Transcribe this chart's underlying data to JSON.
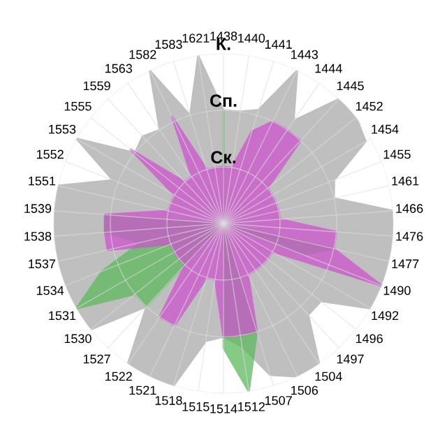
{
  "chart_data": {
    "type": "radar",
    "categories": [
      "1438",
      "1440",
      "1441",
      "1443",
      "1444",
      "1445",
      "1452",
      "1454",
      "1455",
      "1461",
      "1466",
      "1476",
      "1477",
      "1490",
      "1492",
      "1496",
      "1497",
      "1504",
      "1506",
      "1507",
      "1512",
      "1514",
      "1515",
      "1518",
      "1521",
      "1522",
      "1527",
      "1530",
      "1531",
      "1534",
      "1537",
      "1538",
      "1539",
      "1551",
      "1552",
      "1553",
      "1555",
      "1559",
      "1563",
      "1582",
      "1583",
      "1621"
    ],
    "series": [
      {
        "color": "#b4b4b4",
        "values": [
          2.0,
          2.0,
          2.1,
          3.0,
          2.2,
          3.0,
          3.0,
          2.9,
          2.1,
          2.0,
          3.0,
          3.0,
          3.0,
          3.0,
          3.0,
          2.2,
          2.2,
          3.0,
          3.0,
          2.8,
          2.2,
          2.0,
          2.1,
          3.0,
          3.0,
          3.0,
          2.0,
          3.0,
          3.0,
          3.0,
          3.0,
          3.0,
          3.0,
          3.0,
          2.1,
          3.0,
          2.0,
          2.1,
          2.0,
          3.0,
          2.0,
          3.0
        ]
      },
      {
        "color": "#5cb85c",
        "values": [
          2.0,
          0,
          0,
          0,
          0,
          0,
          0,
          0,
          0,
          0,
          0,
          0,
          2.0,
          1.5,
          0,
          0,
          0,
          0,
          0,
          2.0,
          3.0,
          2.2,
          0,
          0,
          0,
          0,
          2.0,
          2.0,
          3.0,
          2.3,
          1.5,
          2.1,
          2.1,
          0,
          0,
          0,
          0,
          0,
          0,
          0,
          0,
          0
        ]
      },
      {
        "color": "#cc55cc",
        "values": [
          1.0,
          1.0,
          1.7,
          2.0,
          2.0,
          2.0,
          1.0,
          1.0,
          1.0,
          1.0,
          1.0,
          2.0,
          2.0,
          3.0,
          1.0,
          1.0,
          1.0,
          1.0,
          1.0,
          2.0,
          2.0,
          2.0,
          1.0,
          1.0,
          2.0,
          2.0,
          1.0,
          1.0,
          1.0,
          1.0,
          2.1,
          2.1,
          2.1,
          1.0,
          1.0,
          1.0,
          2.1,
          1.0,
          1.0,
          2.1,
          1.0,
          1.0
        ]
      }
    ],
    "ylim": [
      0,
      3
    ],
    "yticks": [
      {
        "value": 1,
        "label": "Ск."
      },
      {
        "value": 2,
        "label": "Сп."
      },
      {
        "value": 3,
        "label": "К."
      }
    ],
    "grid": true
  }
}
